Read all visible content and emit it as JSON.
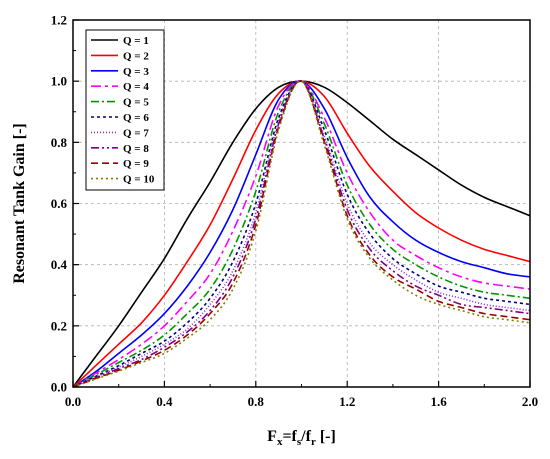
{
  "chart_data": {
    "type": "line",
    "xlabel": "F_x=f_s/f_r [-]",
    "xlabel_parts": {
      "main": "F",
      "sub1": "x",
      "mid": "=f",
      "sub2": "s",
      "slash": "/f",
      "sub3": "r",
      "tail": " [-]"
    },
    "ylabel": "Resonant Tank Gain [-]",
    "xlim": [
      0.0,
      2.0
    ],
    "ylim": [
      0.0,
      1.2
    ],
    "x_ticks": [
      "0.0",
      "0.4",
      "0.8",
      "1.2",
      "1.6",
      "2.0"
    ],
    "y_ticks": [
      "0.0",
      "0.2",
      "0.4",
      "0.6",
      "0.8",
      "1.0",
      "1.2"
    ],
    "x": [
      0.0,
      0.1,
      0.2,
      0.3,
      0.4,
      0.5,
      0.6,
      0.7,
      0.8,
      0.9,
      1.0,
      1.1,
      1.2,
      1.3,
      1.4,
      1.5,
      1.6,
      1.7,
      1.8,
      1.9,
      2.0
    ],
    "grid": true,
    "legend_position": "top-left",
    "series": [
      {
        "name": "Q = 1",
        "color": "#000000",
        "dash": "",
        "values": [
          0.0,
          0.1,
          0.2,
          0.31,
          0.42,
          0.55,
          0.67,
          0.8,
          0.91,
          0.98,
          1.0,
          0.98,
          0.93,
          0.87,
          0.81,
          0.76,
          0.71,
          0.66,
          0.62,
          0.59,
          0.56
        ]
      },
      {
        "name": "Q = 2",
        "color": "#ff0000",
        "dash": "",
        "values": [
          0.0,
          0.07,
          0.14,
          0.21,
          0.3,
          0.41,
          0.53,
          0.68,
          0.84,
          0.96,
          1.0,
          0.95,
          0.83,
          0.72,
          0.64,
          0.57,
          0.52,
          0.48,
          0.45,
          0.43,
          0.41
        ]
      },
      {
        "name": "Q = 3",
        "color": "#0000ff",
        "dash": "",
        "values": [
          0.0,
          0.05,
          0.11,
          0.17,
          0.24,
          0.33,
          0.44,
          0.58,
          0.76,
          0.94,
          1.0,
          0.91,
          0.75,
          0.62,
          0.54,
          0.48,
          0.44,
          0.41,
          0.39,
          0.37,
          0.36
        ]
      },
      {
        "name": "Q = 4",
        "color": "#ff00ff",
        "dash": "10 4 3 4",
        "values": [
          0.0,
          0.045,
          0.09,
          0.14,
          0.2,
          0.28,
          0.37,
          0.51,
          0.69,
          0.92,
          1.0,
          0.88,
          0.7,
          0.57,
          0.48,
          0.43,
          0.39,
          0.36,
          0.34,
          0.33,
          0.32
        ]
      },
      {
        "name": "Q = 5",
        "color": "#009900",
        "dash": "8 3 2 3",
        "values": [
          0.0,
          0.04,
          0.08,
          0.12,
          0.17,
          0.24,
          0.32,
          0.45,
          0.64,
          0.9,
          1.0,
          0.86,
          0.66,
          0.53,
          0.45,
          0.4,
          0.36,
          0.33,
          0.31,
          0.3,
          0.29
        ]
      },
      {
        "name": "Q = 6",
        "color": "#000080",
        "dash": "3 3",
        "values": [
          0.0,
          0.035,
          0.07,
          0.11,
          0.15,
          0.21,
          0.29,
          0.41,
          0.6,
          0.88,
          1.0,
          0.84,
          0.63,
          0.5,
          0.42,
          0.37,
          0.33,
          0.31,
          0.29,
          0.28,
          0.27
        ]
      },
      {
        "name": "Q = 7",
        "color": "#8a2be2",
        "dash": "1 2",
        "values": [
          0.0,
          0.032,
          0.065,
          0.1,
          0.14,
          0.19,
          0.27,
          0.38,
          0.57,
          0.87,
          1.0,
          0.82,
          0.6,
          0.47,
          0.4,
          0.35,
          0.31,
          0.29,
          0.27,
          0.26,
          0.25
        ]
      },
      {
        "name": "Q = 8",
        "color": "#800080",
        "dash": "8 3 2 3 2 3",
        "values": [
          0.0,
          0.03,
          0.06,
          0.09,
          0.13,
          0.18,
          0.25,
          0.36,
          0.55,
          0.86,
          1.0,
          0.81,
          0.58,
          0.45,
          0.38,
          0.33,
          0.3,
          0.27,
          0.26,
          0.25,
          0.24
        ]
      },
      {
        "name": "Q = 9",
        "color": "#990000",
        "dash": "7 4",
        "values": [
          0.0,
          0.028,
          0.055,
          0.085,
          0.12,
          0.17,
          0.24,
          0.34,
          0.53,
          0.85,
          1.0,
          0.8,
          0.56,
          0.43,
          0.36,
          0.32,
          0.28,
          0.26,
          0.24,
          0.23,
          0.22
        ]
      },
      {
        "name": "Q = 10",
        "color": "#808000",
        "dash": "2 3",
        "values": [
          0.0,
          0.026,
          0.052,
          0.08,
          0.11,
          0.16,
          0.22,
          0.32,
          0.51,
          0.84,
          1.0,
          0.79,
          0.55,
          0.42,
          0.35,
          0.3,
          0.27,
          0.25,
          0.23,
          0.22,
          0.21
        ]
      }
    ]
  }
}
